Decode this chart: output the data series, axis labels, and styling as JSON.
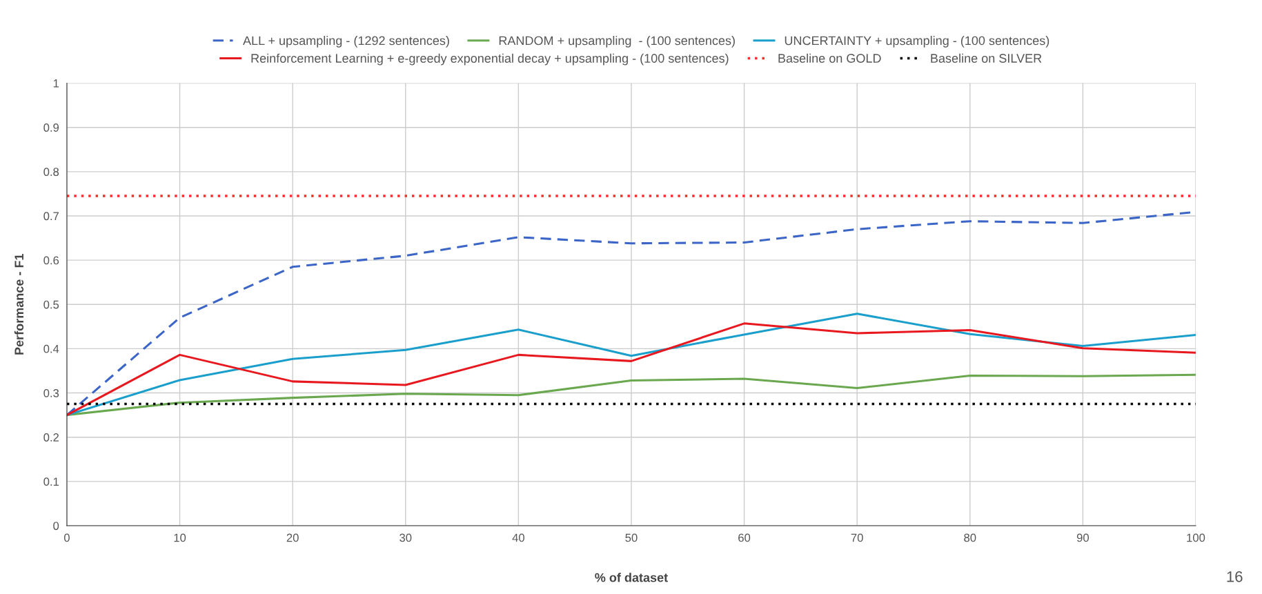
{
  "chart_data": {
    "type": "line",
    "xlabel": "% of dataset",
    "ylabel": "Performance - F1",
    "x": [
      0,
      10,
      20,
      30,
      40,
      50,
      60,
      70,
      80,
      90,
      100
    ],
    "series": [
      {
        "name": "ALL + upsampling - (1292 sentences)",
        "color": "#3c65c8",
        "line_style": "dashed",
        "values": [
          0.25,
          0.47,
          0.585,
          0.61,
          0.652,
          0.638,
          0.64,
          0.67,
          0.688,
          0.684,
          0.709
        ]
      },
      {
        "name": "RANDOM + upsampling  - (100 sentences)",
        "color": "#6aa84f",
        "values": [
          0.25,
          0.278,
          0.289,
          0.298,
          0.295,
          0.328,
          0.332,
          0.311,
          0.339,
          0.338,
          0.341
        ]
      },
      {
        "name": "UNCERTAINTY + upsampling - (100 sentences)",
        "color": "#1a9fcc",
        "values": [
          0.25,
          0.329,
          0.377,
          0.397,
          0.443,
          0.384,
          0.432,
          0.479,
          0.433,
          0.406,
          0.431
        ]
      },
      {
        "name": "Reinforcement Learning + e-greedy exponential decay + upsampling - (100 sentences)",
        "color": "#e8181f",
        "values": [
          0.25,
          0.386,
          0.326,
          0.318,
          0.386,
          0.372,
          0.457,
          0.435,
          0.442,
          0.401,
          0.391
        ]
      }
    ],
    "ref_lines": [
      {
        "axis": "y",
        "value": 0.745,
        "label": "Baseline on GOLD",
        "color": "#ff2a2a",
        "line_style": "dotted"
      },
      {
        "axis": "y",
        "value": 0.275,
        "label": "Baseline on SILVER",
        "color": "#000000",
        "line_style": "dotted"
      }
    ],
    "xlim": [
      0,
      100
    ],
    "xticks": [
      0,
      10,
      20,
      30,
      40,
      50,
      60,
      70,
      80,
      90,
      100
    ],
    "ylim": [
      0,
      1
    ],
    "yticks": [
      0,
      0.1,
      0.2,
      0.3,
      0.4,
      0.5,
      0.6,
      0.7,
      0.8,
      0.9,
      1
    ],
    "grid": true,
    "legend": "top",
    "marker": "none",
    "line_style": "solid",
    "annotations": [
      "16"
    ]
  }
}
